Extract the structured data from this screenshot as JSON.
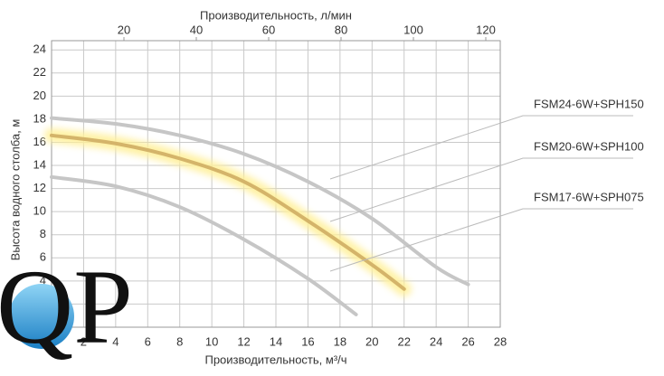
{
  "chart_data": {
    "type": "line",
    "x_title": "Производительность, м³/ч",
    "x2_title": "Производительность, л/мин",
    "y_title": "Высота водного столба, м",
    "logo": "QP",
    "xlim": [
      0,
      28
    ],
    "xticks": [
      2,
      4,
      6,
      8,
      10,
      12,
      14,
      16,
      18,
      20,
      22,
      24,
      26,
      28
    ],
    "x2lim": [
      0,
      124
    ],
    "x2ticks": [
      20,
      40,
      60,
      80,
      100,
      120
    ],
    "ylim": [
      0,
      24.8
    ],
    "yticks": [
      2,
      4,
      6,
      8,
      10,
      12,
      14,
      16,
      18,
      20,
      22,
      24
    ],
    "grid": true,
    "series": [
      {
        "name": "FSM24-6W+SPH150",
        "color": "#c6c6c6",
        "x": [
          0,
          4,
          8,
          12,
          16,
          20,
          24,
          26
        ],
        "values": [
          18.1,
          17.6,
          16.6,
          15,
          12.6,
          9.4,
          5.2,
          3.7
        ]
      },
      {
        "name": "FSM20-6W+SPH100",
        "color": "#d4b46a",
        "highlight": true,
        "x": [
          0,
          4,
          8,
          12,
          16,
          20,
          22
        ],
        "values": [
          16.6,
          15.9,
          14.6,
          12.6,
          9.2,
          5.4,
          3.3
        ]
      },
      {
        "name": "FSM17-6W+SPH075",
        "color": "#c6c6c6",
        "x": [
          0,
          4,
          8,
          12,
          16,
          19
        ],
        "values": [
          13,
          12.2,
          10.4,
          7.6,
          4.2,
          1.1
        ]
      }
    ]
  }
}
